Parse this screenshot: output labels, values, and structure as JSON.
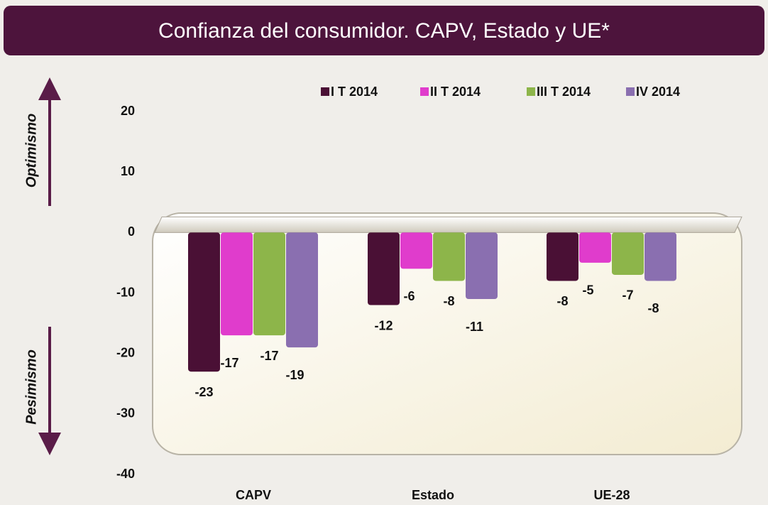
{
  "chart_data": {
    "type": "bar",
    "title": "Confianza del consumidor. CAPV, Estado y UE*",
    "annotations": [
      "Optimismo",
      "Pesimismo"
    ],
    "categories": [
      "CAPV",
      "Estado",
      "UE-28"
    ],
    "series": [
      {
        "name": "I T 2014",
        "color": "#4a1035",
        "values": [
          -23,
          -12,
          -8
        ]
      },
      {
        "name": "II T 2014",
        "color": "#e03ccc",
        "values": [
          -17,
          -6,
          -5
        ]
      },
      {
        "name": "III T 2014",
        "color": "#8db54a",
        "values": [
          -17,
          -8,
          -7
        ]
      },
      {
        "name": "IV 2014",
        "color": "#8a6fb0",
        "values": [
          -19,
          -11,
          -8
        ]
      }
    ],
    "ylim": [
      -40,
      20
    ],
    "yticks": [
      -40,
      -30,
      -20,
      -10,
      0,
      10,
      20
    ],
    "legend": "top"
  }
}
